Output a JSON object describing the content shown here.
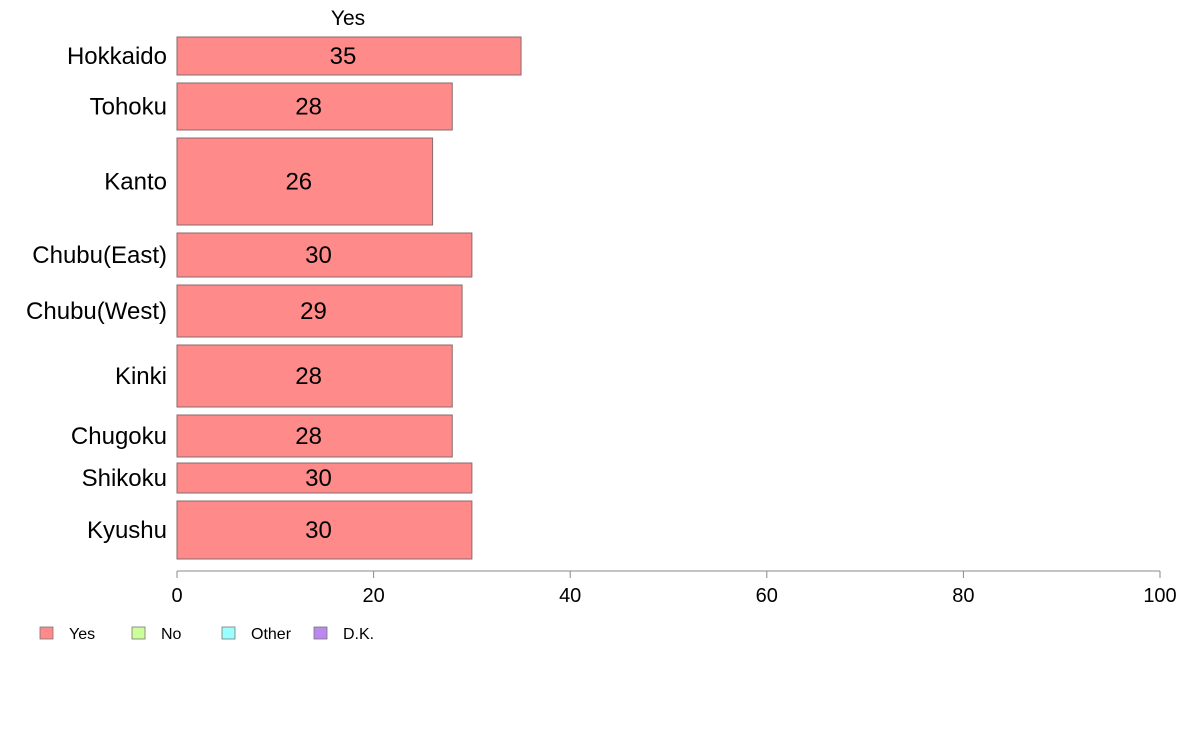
{
  "chart_data": {
    "type": "bar",
    "orientation": "horizontal",
    "stacked": true,
    "column_label": "Yes",
    "categories": [
      "Hokkaido",
      "Tohoku",
      "Kanto",
      "Chubu(East)",
      "Chubu(West)",
      "Kinki",
      "Chugoku",
      "Shikoku",
      "Kyushu"
    ],
    "series": [
      {
        "name": "Yes",
        "color": "#ff8a8a",
        "values": [
          35,
          28,
          26,
          30,
          29,
          28,
          28,
          30,
          30
        ]
      }
    ],
    "xlim": [
      0,
      100
    ],
    "xticks": [
      0,
      20,
      40,
      60,
      80,
      100
    ],
    "grid": false,
    "legend": {
      "placement": "bottom-left",
      "entries": [
        {
          "label": "Yes",
          "color": "#ff8a8a"
        },
        {
          "label": "No",
          "color": "#ccff99"
        },
        {
          "label": "Other",
          "color": "#99ffff"
        },
        {
          "label": "D.K.",
          "color": "#bb88ee"
        }
      ]
    }
  }
}
